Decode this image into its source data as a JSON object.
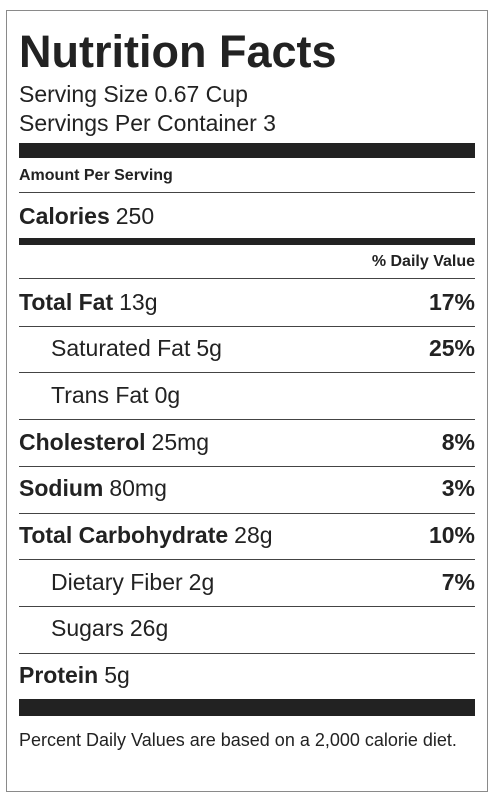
{
  "label": {
    "title": "Nutrition Facts",
    "serving_size": "Serving Size 0.67 Cup",
    "servings_per_container": "Servings Per Container 3",
    "amount_per_serving": "Amount Per Serving",
    "calories": {
      "name": "Calories",
      "amount": "250"
    },
    "dv_header": "% Daily Value",
    "rows": [
      {
        "name": "Total Fat",
        "amount": "13g",
        "dv": "17%",
        "sub": [
          {
            "name": "Saturated Fat",
            "amount": "5g",
            "dv": "25%"
          },
          {
            "name": "Trans Fat",
            "amount": "0g"
          }
        ]
      },
      {
        "name": "Cholesterol",
        "amount": "25mg",
        "dv": "8%"
      },
      {
        "name": "Sodium",
        "amount": "80mg",
        "dv": "3%"
      },
      {
        "name": "Total Carbohydrate",
        "amount": "28g",
        "dv": "10%",
        "sub": [
          {
            "name": "Dietary Fiber",
            "amount": "2g",
            "dv": "7%"
          },
          {
            "name": "Sugars",
            "amount": "26g"
          }
        ]
      },
      {
        "name": "Protein",
        "amount": "5g"
      }
    ],
    "footnote": "Percent Daily Values are based on a 2,000 calorie diet."
  }
}
